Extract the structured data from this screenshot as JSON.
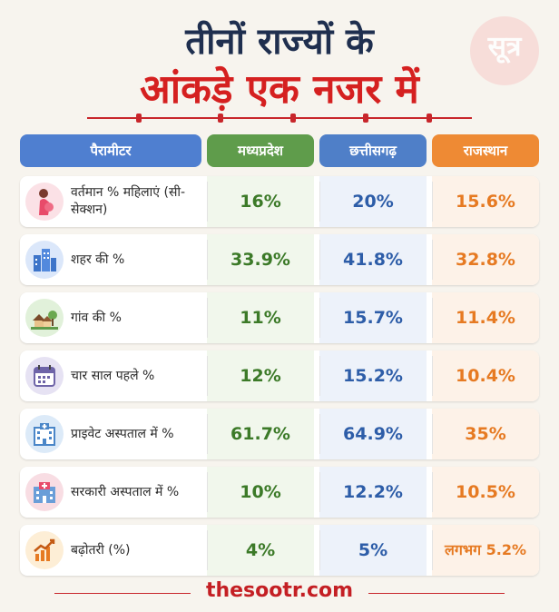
{
  "title": {
    "line1": "तीनों राज्यों के",
    "line2": "आंकड़े एक नजर में"
  },
  "logo": {
    "text": "सूत्र"
  },
  "colors": {
    "param": "#4f7fd0",
    "mp": "#5f9c4b",
    "cg": "#4f7fc8",
    "rj": "#ee8a34",
    "title_red": "#d52020"
  },
  "footer": "thesootr.com",
  "chart_data": {
    "type": "table",
    "columns": [
      "पैरामीटर",
      "मध्यप्रदेश",
      "छत्तीसगढ़",
      "राजस्थान"
    ],
    "rows": [
      {
        "icon": "pregnant-woman-icon",
        "label": "वर्तमान % महिलाएं (सी-सेक्शन)",
        "mp": "16%",
        "cg": "20%",
        "rj": "15.6%"
      },
      {
        "icon": "city-buildings-icon",
        "label": "शहर की %",
        "mp": "33.9%",
        "cg": "41.8%",
        "rj": "32.8%"
      },
      {
        "icon": "village-houses-icon",
        "label": "गांव की %",
        "mp": "11%",
        "cg": "15.7%",
        "rj": "11.4%"
      },
      {
        "icon": "calendar-icon",
        "label": "चार साल पहले %",
        "mp": "12%",
        "cg": "15.2%",
        "rj": "10.4%"
      },
      {
        "icon": "private-hospital-icon",
        "label": "प्राइवेट अस्पताल में %",
        "mp": "61.7%",
        "cg": "64.9%",
        "rj": "35%"
      },
      {
        "icon": "government-hospital-icon",
        "label": "सरकारी अस्पताल में %",
        "mp": "10%",
        "cg": "12.2%",
        "rj": "10.5%"
      },
      {
        "icon": "growth-chart-icon",
        "label": "बढ़ोतरी (%)",
        "mp": "4%",
        "cg": "5%",
        "rj": "लगभग 5.2%"
      }
    ]
  }
}
